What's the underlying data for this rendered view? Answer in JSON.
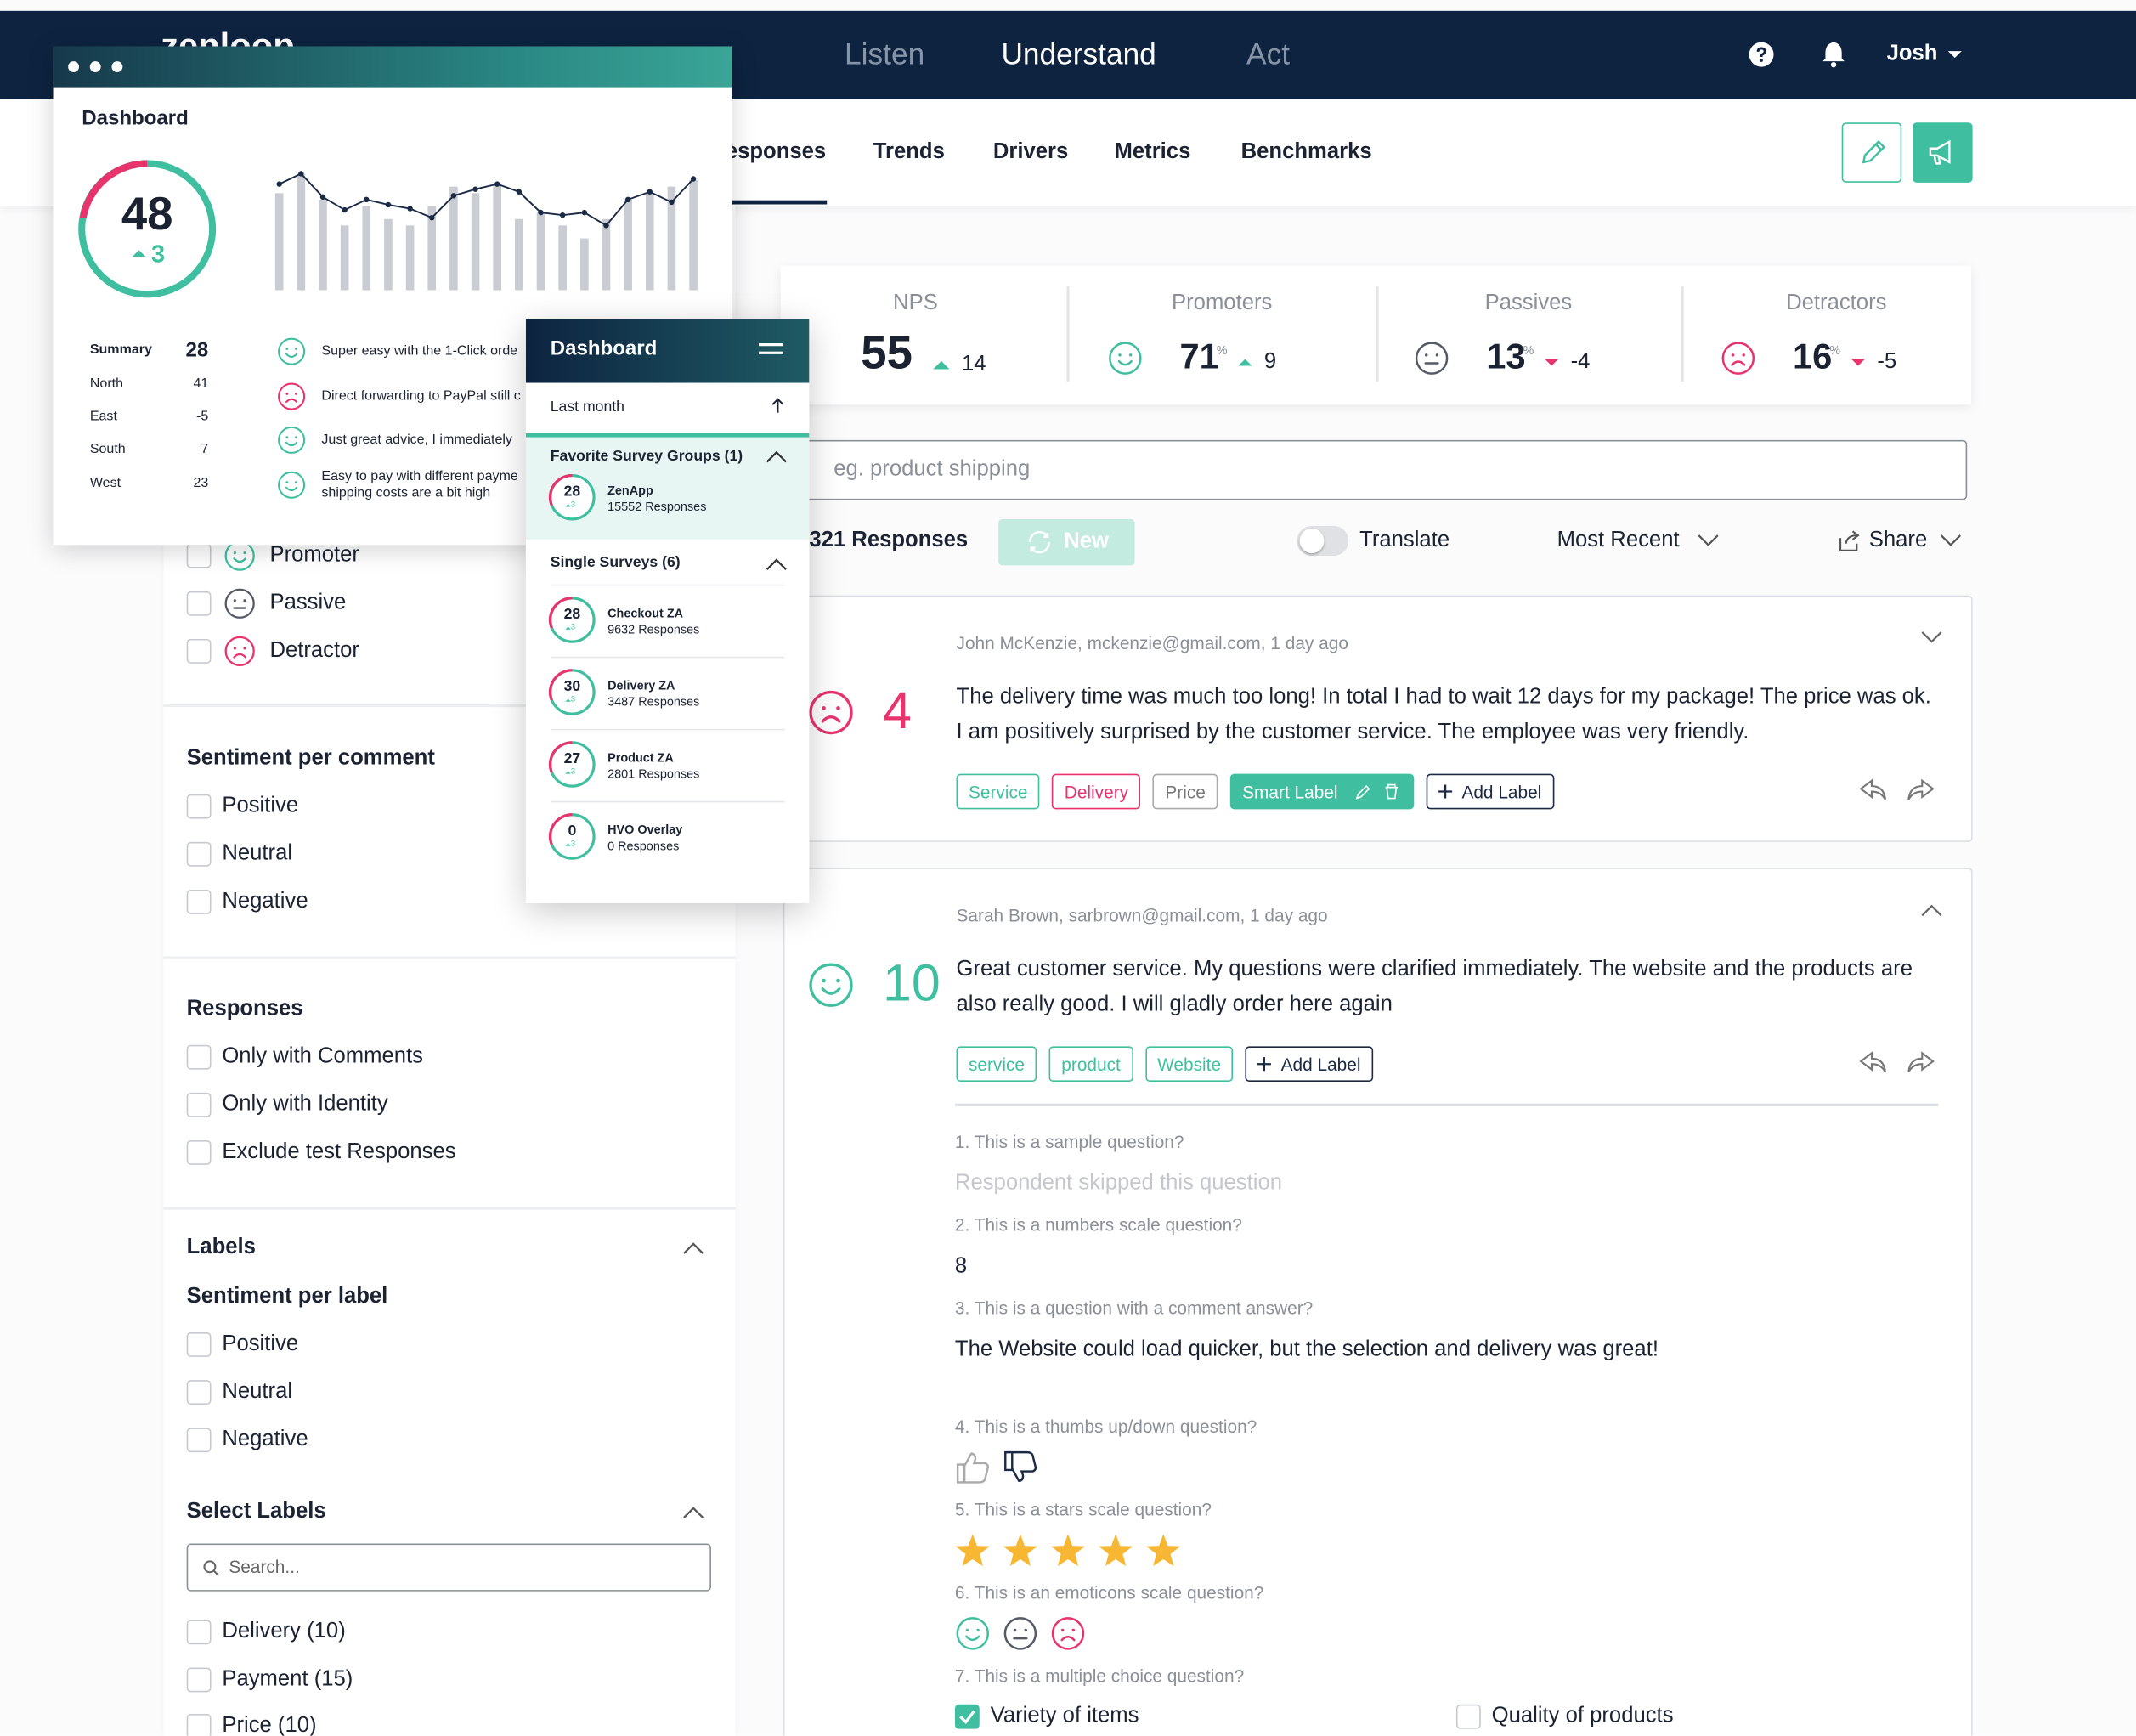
{
  "nav": {
    "brand": "zenloop",
    "tabs": [
      "Listen",
      "Understand",
      "Act"
    ],
    "user": "Josh"
  },
  "subnav": {
    "tabs": [
      "Responses",
      "Trends",
      "Drivers",
      "Metrics",
      "Benchmarks"
    ]
  },
  "kpis": [
    {
      "label": "NPS",
      "value": 55,
      "delta": 14
    },
    {
      "label": "Promoters",
      "value": 71,
      "unit": "%",
      "delta": 9,
      "mood": "positive"
    },
    {
      "label": "Passives",
      "value": 13,
      "unit": "%",
      "delta": -4,
      "mood": "neutral"
    },
    {
      "label": "Detractors",
      "value": 16,
      "unit": "%",
      "delta": -5,
      "mood": "negative"
    }
  ],
  "search_placeholder": "eg. product shipping",
  "toolbar": {
    "count": "321 Responses",
    "new": "New",
    "translate": "Translate",
    "sort": "Most Recent",
    "share": "Share"
  },
  "responses": [
    {
      "meta": "John McKenzie, mckenzie@gmail.com, 1 day ago",
      "score": 4,
      "mood": "negative",
      "text": "The delivery time was much too long! In total I had to wait 12 days for my package! The price was ok. I am positively surprised by the customer service. The employee was very friendly.",
      "labels": [
        {
          "text": "Service",
          "style": "teal"
        },
        {
          "text": "Delivery",
          "style": "pink"
        },
        {
          "text": "Price",
          "style": "gray"
        },
        {
          "text": "Smart Label",
          "style": "filled"
        },
        {
          "text": "Add Label",
          "style": "add"
        }
      ]
    },
    {
      "meta": "Sarah Brown, sarbrown@gmail.com, 1 day ago",
      "score": 10,
      "mood": "positive",
      "text": "Great customer service. My questions were clarified immediately. The website and the products are also really good. I will gladly order here again",
      "labels": [
        {
          "text": "service",
          "style": "teal"
        },
        {
          "text": "product",
          "style": "teal"
        },
        {
          "text": "Website",
          "style": "teal"
        },
        {
          "text": "Add Label",
          "style": "add"
        }
      ]
    }
  ],
  "questions": [
    {
      "q": "1. This is a sample question?",
      "skipped": "Respondent skipped this question"
    },
    {
      "q": "2. This is a numbers scale question?",
      "answer": 8
    },
    {
      "q": "3. This is a question with a comment answer?",
      "answer": "The Website could load quicker, but the selection and delivery was great!"
    },
    {
      "q": "4. This is a thumbs up/down question?",
      "thumb": "down"
    },
    {
      "q": "5. This is a stars scale question?",
      "stars": 5
    },
    {
      "q": "6. This is an emoticons scale question?",
      "emoticons": [
        "positive",
        "neutral",
        "negative"
      ]
    },
    {
      "q": "7. This is a multiple choice question?",
      "options": [
        {
          "label": "Variety of items",
          "checked": true
        },
        {
          "label": "Quality of products",
          "checked": false
        }
      ]
    }
  ],
  "filters": {
    "nps": [
      {
        "label": "Promoter",
        "mood": "positive"
      },
      {
        "label": "Passive",
        "mood": "neutral"
      },
      {
        "label": "Detractor",
        "mood": "negative"
      }
    ],
    "sentiment_title": "Sentiment per comment",
    "sentiment": [
      "Positive",
      "Neutral",
      "Negative"
    ],
    "responses_title": "Responses",
    "responses": [
      "Only with Comments",
      "Only with Identity",
      "Exclude test Responses"
    ],
    "labels_title": "Labels",
    "label_sentiment_title": "Sentiment per label",
    "label_sentiment": [
      "Positive",
      "Neutral",
      "Negative"
    ],
    "select_title": "Select Labels",
    "search": "Search...",
    "labels": [
      "Delivery (10)",
      "Payment (15)",
      "Price (10)"
    ]
  },
  "dashboard": {
    "title": "Dashboard",
    "score": 48,
    "delta": 3,
    "bars": [
      75,
      90,
      70,
      50,
      65,
      55,
      50,
      65,
      80,
      75,
      82,
      55,
      60,
      50,
      40,
      55,
      70,
      75,
      80,
      85
    ],
    "line": [
      82,
      90,
      72,
      62,
      70,
      66,
      63,
      56,
      73,
      78,
      82,
      76,
      60,
      58,
      60,
      50,
      70,
      76,
      68,
      86
    ],
    "summary": [
      {
        "name": "Summary",
        "value": 28
      },
      {
        "name": "North",
        "value": 41
      },
      {
        "name": "East",
        "value": -5
      },
      {
        "name": "South",
        "value": 7
      },
      {
        "name": "West",
        "value": 23
      }
    ],
    "comments": [
      {
        "text": [
          "Super easy with the 1-Click orde"
        ],
        "mood": "positive"
      },
      {
        "text": [
          "Direct forwarding to PayPal still c"
        ],
        "mood": "negative"
      },
      {
        "text": [
          "Just great advice, I immediately"
        ],
        "mood": "positive"
      },
      {
        "text": [
          "Easy to pay with different payme",
          "shipping costs are a bit high"
        ],
        "mood": "positive"
      }
    ]
  },
  "mobile": {
    "title": "Dashboard",
    "period": "Last month",
    "group_title": "Favorite Survey Groups (1)",
    "groups": [
      {
        "name": "ZenApp",
        "score": 28,
        "delta": 3,
        "responses": "15552 Responses"
      }
    ],
    "single_title": "Single Surveys (6)",
    "surveys": [
      {
        "name": "Checkout ZA",
        "score": 28,
        "delta": 3,
        "responses": "9632 Responses"
      },
      {
        "name": "Delivery ZA",
        "score": 30,
        "delta": 3,
        "responses": "3487 Responses"
      },
      {
        "name": "Product ZA",
        "score": 27,
        "delta": 3,
        "responses": "2801 Responses"
      },
      {
        "name": "HVO Overlay",
        "score": 0,
        "delta": 3,
        "responses": "0 Responses"
      }
    ]
  }
}
